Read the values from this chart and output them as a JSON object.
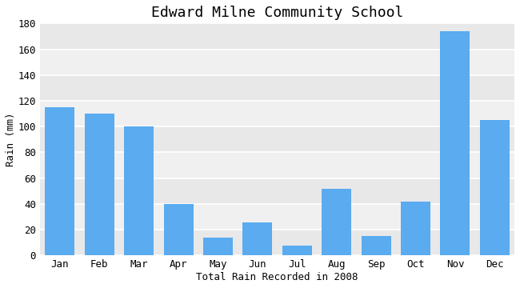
{
  "title": "Edward Milne Community School",
  "xlabel": "Total Rain Recorded in 2008",
  "ylabel": "Rain (mm)",
  "months": [
    "Jan",
    "Feb",
    "Mar",
    "Apr",
    "May",
    "Jun",
    "Jul",
    "Aug",
    "Sep",
    "Oct",
    "Nov",
    "Dec"
  ],
  "values": [
    115,
    110,
    100,
    40,
    14,
    26,
    8,
    52,
    15,
    42,
    174,
    105
  ],
  "bar_color": "#5aabf0",
  "bg_color": "#ffffff",
  "plot_bg_color": "#ffffff",
  "band_color_1": "#f0f0f0",
  "band_color_2": "#e8e8e8",
  "ylim": [
    0,
    180
  ],
  "yticks": [
    0,
    20,
    40,
    60,
    80,
    100,
    120,
    140,
    160,
    180
  ],
  "title_fontsize": 13,
  "label_fontsize": 9,
  "tick_fontsize": 9,
  "bar_width": 0.75
}
